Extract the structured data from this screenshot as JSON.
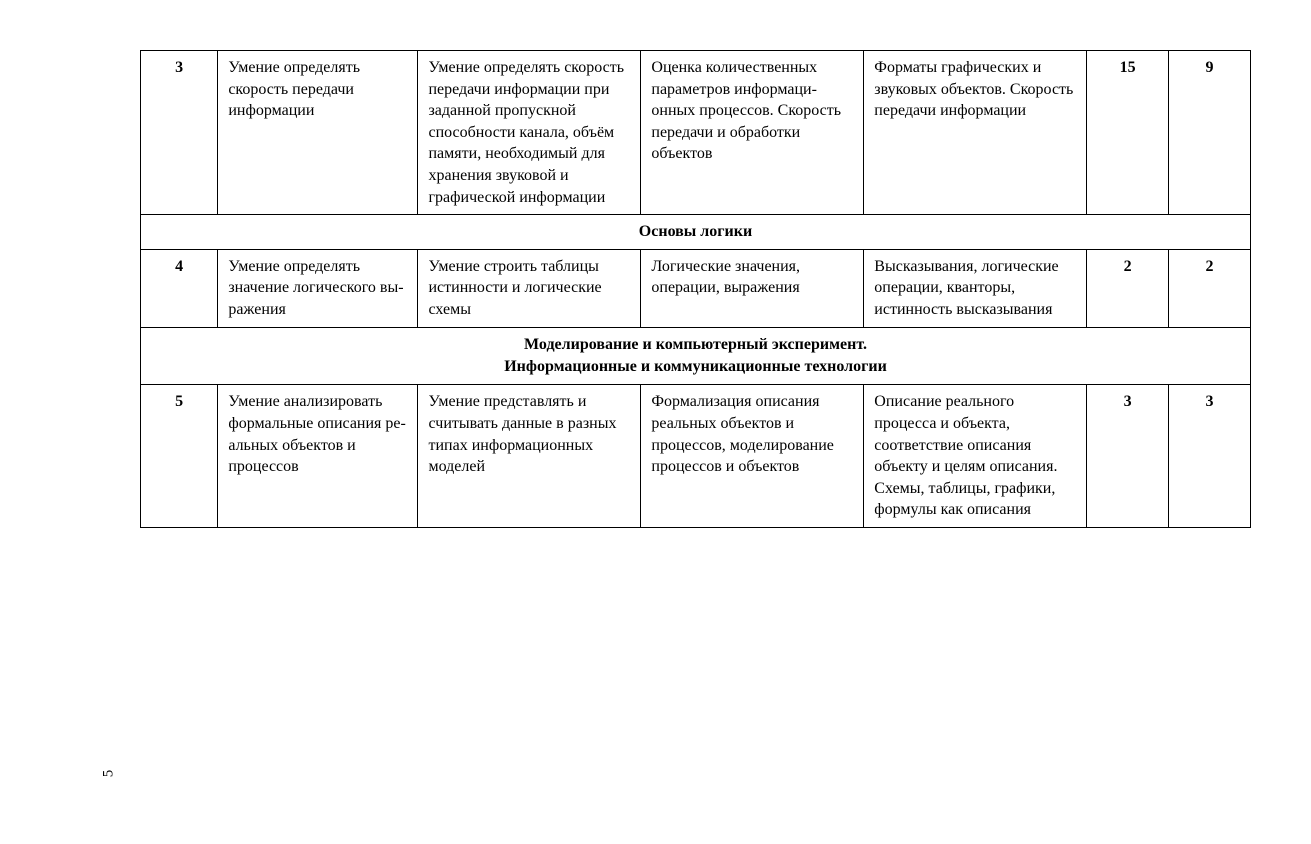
{
  "page_number": "5",
  "table": {
    "column_widths": [
      "68px",
      "176px",
      "196px",
      "196px",
      "196px",
      "72px",
      "72px"
    ],
    "rows": [
      {
        "type": "data",
        "num": "3",
        "skill1": "Умение опре­делять скорость передачи информации",
        "skill2": "Умение опре­делять скорость передачи инфор­мации при задан­ной пропускной способности ка­нала, объём памяти, необхо­димый для хра­нения звуковой и графической информации",
        "content1": "Оценка количес­твенных парамет­ров информаци­онных процессов. Скорость пере­дачи и обработки объектов",
        "content2": "Форматы графи­ческих и звуко­вых объектов. Скорость переда­чи информации",
        "n1": "15",
        "n2": "9"
      },
      {
        "type": "section",
        "lines": [
          "Основы логики"
        ]
      },
      {
        "type": "data",
        "num": "4",
        "skill1": "Умение опре­делять значение логического вы­ражения",
        "skill2": "Умение строить таблицы истин­ности и логиче­ские схемы",
        "content1": "Логические зна­чения, операции, выражения",
        "content2": "Высказывания, логические операции, кван­торы, истинность высказывания",
        "n1": "2",
        "n2": "2"
      },
      {
        "type": "section",
        "lines": [
          "Моделирование и компьютерный эксперимент.",
          "Информационные и коммуникационные технологии"
        ]
      },
      {
        "type": "data",
        "num": "5",
        "skill1": "Умение анализи­ровать формаль­ные описания ре­альных объектов и процессов",
        "skill2": "Умение представ­лять и считывать данные в разных типах информа­ционных моделей",
        "content1": "Формализация описания реаль­ных объектов и процессов, моделирование процессов и объектов",
        "content2": "Описание реаль­ного процесса и объекта, соответствие опи­сания объекту и целям описа­ния. Схемы, та­блицы, графики, формулы как описания",
        "n1": "3",
        "n2": "3"
      }
    ]
  }
}
